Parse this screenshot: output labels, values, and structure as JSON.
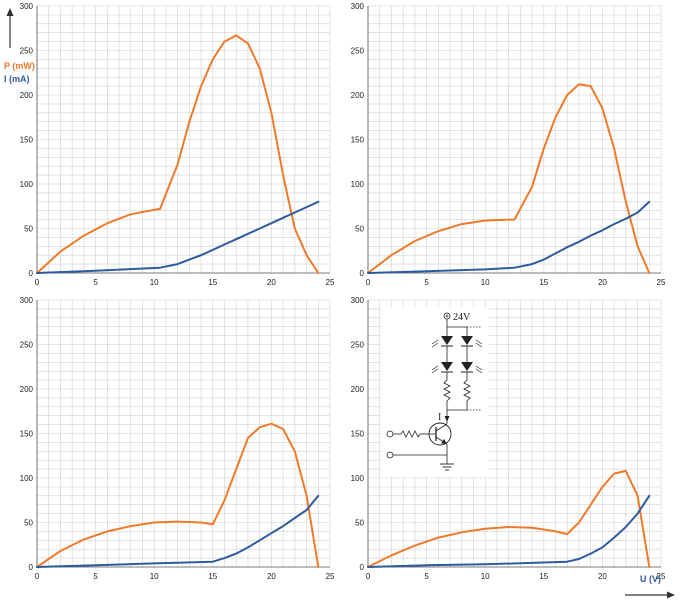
{
  "colors": {
    "power": "#f07a2a",
    "current": "#2d5b9e",
    "grid": "#d0d0d0"
  },
  "labels": {
    "p_axis": "P (mW)",
    "i_axis": "I (mA)",
    "u_axis": "U (V)"
  },
  "circuit": {
    "supply_label": "24V",
    "current_label": "I"
  },
  "chart_data": [
    {
      "type": "line",
      "xlim": [
        0,
        25
      ],
      "ylim": [
        0,
        300
      ],
      "xticks": [
        0,
        5,
        10,
        15,
        20,
        25
      ],
      "yticks": [
        0,
        50,
        100,
        150,
        200,
        250,
        300
      ],
      "grid": true,
      "series": [
        {
          "name": "P (mW)",
          "color": "power",
          "x": [
            0,
            2,
            4,
            6,
            8,
            10,
            10.5,
            12,
            13,
            14,
            15,
            16,
            17,
            18,
            19,
            20,
            21,
            22,
            23,
            24
          ],
          "y": [
            0,
            24,
            42,
            56,
            66,
            71,
            72,
            122,
            170,
            210,
            240,
            260,
            267,
            258,
            230,
            180,
            110,
            50,
            20,
            0
          ]
        },
        {
          "name": "I (mA)",
          "color": "current",
          "x": [
            0,
            5,
            10.5,
            12,
            13,
            14,
            15,
            16,
            17,
            18,
            19,
            20,
            21,
            22,
            23,
            24
          ],
          "y": [
            0,
            2.5,
            6,
            10,
            15,
            20,
            26,
            32,
            38,
            44,
            50,
            56,
            62,
            68,
            74,
            80
          ]
        }
      ]
    },
    {
      "type": "line",
      "xlim": [
        0,
        25
      ],
      "ylim": [
        0,
        300
      ],
      "xticks": [
        0,
        5,
        10,
        15,
        20,
        25
      ],
      "yticks": [
        0,
        50,
        100,
        150,
        200,
        250,
        300
      ],
      "grid": true,
      "series": [
        {
          "name": "P (mW)",
          "color": "power",
          "x": [
            0,
            2,
            4,
            6,
            8,
            10,
            12,
            12.5,
            14,
            15,
            16,
            17,
            18,
            19,
            20,
            21,
            22,
            23,
            24
          ],
          "y": [
            0,
            20,
            36,
            47,
            55,
            59,
            60,
            60,
            97,
            140,
            175,
            200,
            212,
            210,
            185,
            140,
            80,
            30,
            0
          ]
        },
        {
          "name": "I (mA)",
          "color": "current",
          "x": [
            0,
            5,
            10,
            12.5,
            14,
            15,
            16,
            17,
            18,
            19,
            20,
            21,
            22,
            23,
            24
          ],
          "y": [
            0,
            2,
            4,
            6,
            10,
            15,
            22,
            29,
            35,
            42,
            48,
            55,
            61,
            68,
            80
          ]
        }
      ]
    },
    {
      "type": "line",
      "xlim": [
        0,
        25
      ],
      "ylim": [
        0,
        300
      ],
      "xticks": [
        0,
        5,
        10,
        15,
        20,
        25
      ],
      "yticks": [
        0,
        50,
        100,
        150,
        200,
        250,
        300
      ],
      "grid": true,
      "series": [
        {
          "name": "P (mW)",
          "color": "power",
          "x": [
            0,
            2,
            4,
            6,
            8,
            10,
            12,
            14,
            15,
            16,
            17,
            18,
            19,
            20,
            21,
            22,
            23,
            24
          ],
          "y": [
            0,
            18,
            31,
            40,
            46,
            50,
            51,
            50,
            48,
            75,
            110,
            145,
            157,
            161,
            155,
            130,
            80,
            0
          ]
        },
        {
          "name": "I (mA)",
          "color": "current",
          "x": [
            0,
            5,
            10,
            15,
            16,
            17,
            18,
            19,
            20,
            21,
            22,
            23,
            24
          ],
          "y": [
            0,
            2,
            4,
            6,
            10,
            15,
            22,
            30,
            38,
            46,
            55,
            64,
            80
          ]
        }
      ]
    },
    {
      "type": "line",
      "xlim": [
        0,
        25
      ],
      "ylim": [
        0,
        300
      ],
      "xticks": [
        0,
        5,
        10,
        15,
        20,
        25
      ],
      "yticks": [
        0,
        50,
        100,
        150,
        200,
        250,
        300
      ],
      "grid": true,
      "series": [
        {
          "name": "P (mW)",
          "color": "power",
          "x": [
            0,
            2,
            4,
            6,
            8,
            10,
            12,
            14,
            16,
            17,
            18,
            19,
            20,
            21,
            22,
            23,
            24
          ],
          "y": [
            0,
            13,
            24,
            33,
            39,
            43,
            45,
            44,
            40,
            37,
            50,
            70,
            90,
            105,
            108,
            80,
            0
          ]
        },
        {
          "name": "I (mA)",
          "color": "current",
          "x": [
            0,
            5,
            10,
            17,
            18,
            19,
            20,
            21,
            22,
            23,
            24
          ],
          "y": [
            0,
            2,
            3,
            6,
            9,
            15,
            22,
            33,
            45,
            60,
            80
          ]
        }
      ]
    }
  ]
}
